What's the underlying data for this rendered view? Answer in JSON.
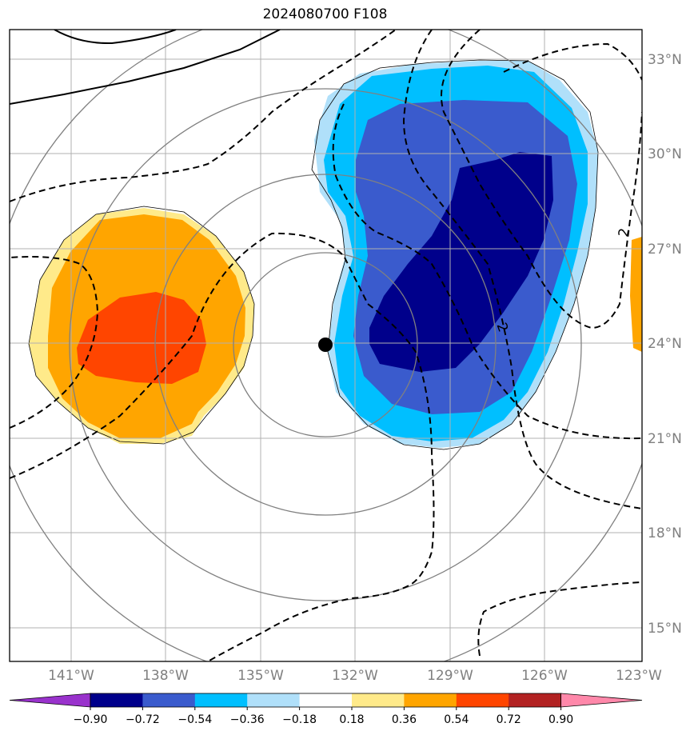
{
  "title": "2024080700 F108",
  "map": {
    "lon_range": [
      -143,
      -123
    ],
    "lat_range": [
      14,
      34
    ],
    "lon_ticks": [
      "141°W",
      "138°W",
      "135°W",
      "132°W",
      "129°W",
      "126°W",
      "123°W"
    ],
    "lat_ticks": [
      "33°N",
      "30°N",
      "27°N",
      "24°N",
      "21°N",
      "18°N",
      "15°N"
    ],
    "center_marker": {
      "lon": -133,
      "lat": 23.9
    },
    "contour_labels": [
      "2",
      "2"
    ],
    "colors": {
      "grid": "#b0b0b0",
      "range_rings": "#808080",
      "contour": "#000000"
    }
  },
  "colorbar": {
    "levels": [
      "−0.90",
      "−0.72",
      "−0.54",
      "−0.36",
      "−0.18",
      "0.18",
      "0.36",
      "0.54",
      "0.72",
      "0.90"
    ],
    "colors": [
      "#9932cc",
      "#00008b",
      "#3a5bcd",
      "#00bfff",
      "#b0e0fa",
      "#ffffff",
      "#ffea8a",
      "#ffa500",
      "#ff4500",
      "#b22222",
      "#ff88aa"
    ]
  }
}
